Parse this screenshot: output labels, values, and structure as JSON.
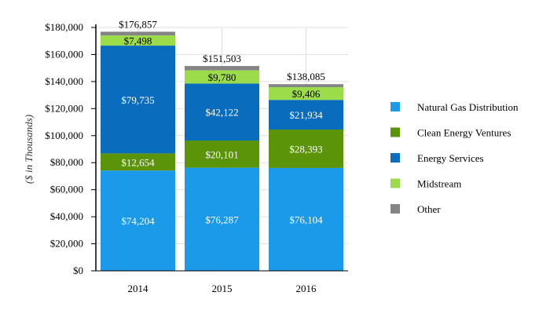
{
  "chart_data": {
    "type": "bar",
    "stacked": true,
    "categories": [
      "2014",
      "2015",
      "2016"
    ],
    "ylabel": "($ in Thousands)",
    "ylim": [
      0,
      180000
    ],
    "yticks": [
      0,
      20000,
      40000,
      60000,
      80000,
      100000,
      120000,
      140000,
      160000,
      180000
    ],
    "ytick_labels": [
      "$0",
      "$20,000",
      "$40,000",
      "$60,000",
      "$80,000",
      "$100,000",
      "$120,000",
      "$140,000",
      "$160,000",
      "$180,000"
    ],
    "grid": true,
    "legend_position": "right",
    "series": [
      {
        "name": "Natural Gas Distribution",
        "color": "#1a9ae8",
        "label_color": "#ffffff",
        "values": [
          74204,
          76287,
          76104
        ],
        "labels": [
          "$74,204",
          "$76,287",
          "$76,104"
        ]
      },
      {
        "name": "Clean Energy Ventures",
        "color": "#5b9409",
        "label_color": "#ffffff",
        "values": [
          12654,
          20101,
          28393
        ],
        "labels": [
          "$12,654",
          "$20,101",
          "$28,393"
        ]
      },
      {
        "name": "Energy Services",
        "color": "#0a6cbd",
        "label_color": "#ffffff",
        "values": [
          79735,
          42122,
          21934
        ],
        "labels": [
          "$79,735",
          "$42,122",
          "$21,934"
        ]
      },
      {
        "name": "Midstream",
        "color": "#9cdc4a",
        "label_color": "#000000",
        "values": [
          7498,
          9780,
          9406
        ],
        "labels": [
          "$7,498",
          "$9,780",
          "$9,406"
        ]
      },
      {
        "name": "Other",
        "color": "#858585",
        "label_color": "#000000",
        "values": [
          2766,
          3213,
          2248
        ],
        "labels": [
          "",
          "",
          ""
        ]
      }
    ],
    "totals": [
      176857,
      151503,
      138085
    ],
    "total_labels": [
      "$176,857",
      "$151,503",
      "$138,085"
    ]
  }
}
